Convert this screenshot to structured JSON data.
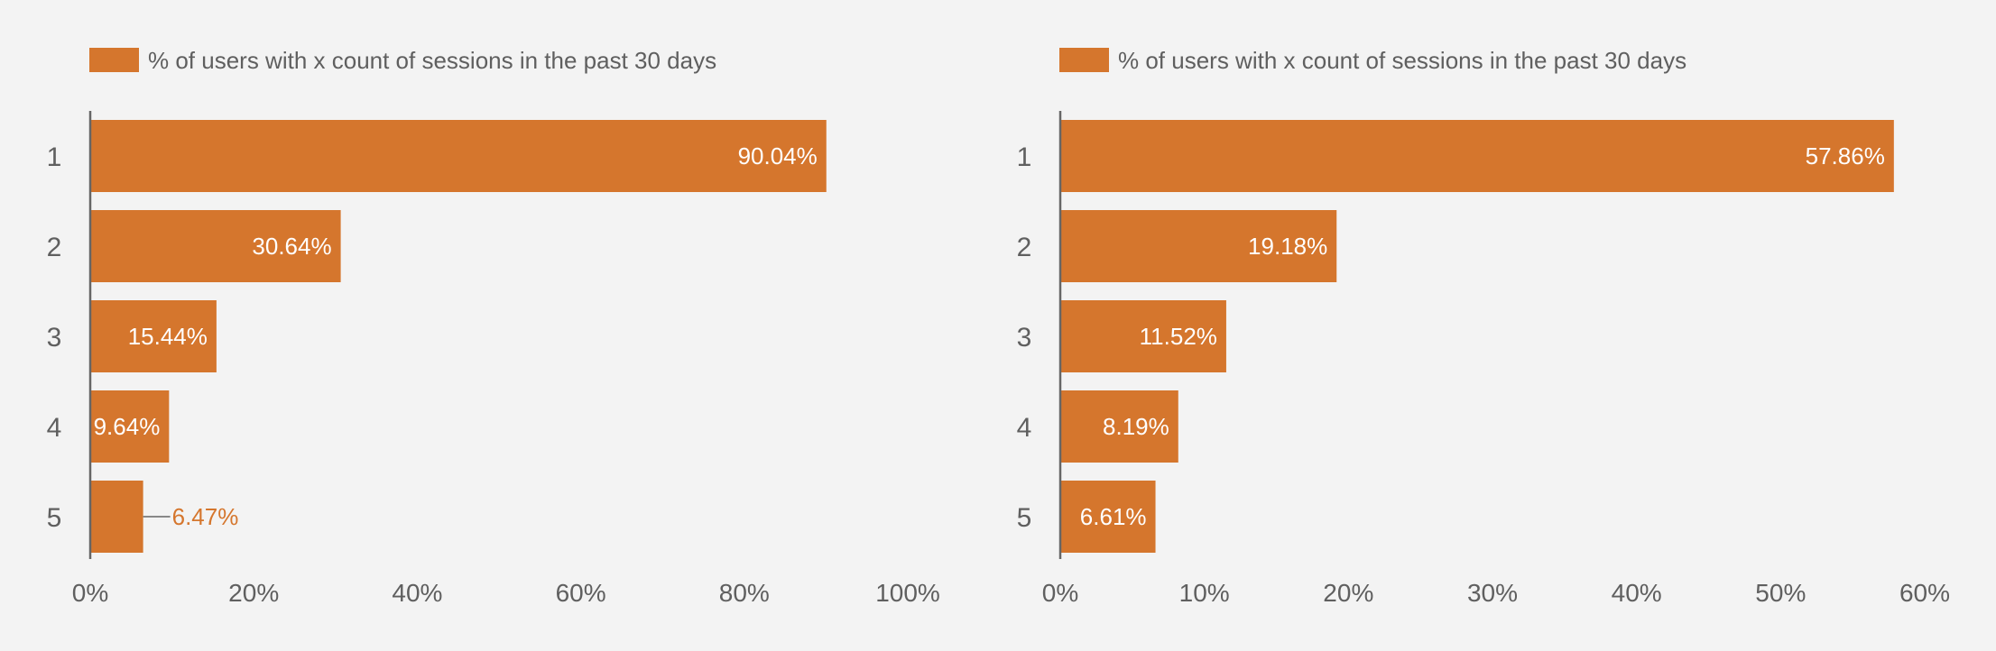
{
  "chart_data": [
    {
      "type": "bar",
      "orientation": "horizontal",
      "legend": {
        "label": "% of users with x count of sessions in the past 30 days",
        "placement": "top-left"
      },
      "categories": [
        "1",
        "2",
        "3",
        "4",
        "5"
      ],
      "values": [
        90.04,
        30.64,
        15.44,
        9.64,
        6.47
      ],
      "data_labels": [
        "90.04%",
        "30.64%",
        "15.44%",
        "9.64%",
        "6.47%"
      ],
      "xlim": [
        0,
        100
      ],
      "xticks": [
        0,
        20,
        40,
        60,
        80,
        100
      ],
      "xtick_labels": [
        "0%",
        "20%",
        "40%",
        "60%",
        "80%",
        "100%"
      ],
      "grid": false
    },
    {
      "type": "bar",
      "orientation": "horizontal",
      "legend": {
        "label": "% of users with x count of sessions in the past 30 days",
        "placement": "top-left"
      },
      "categories": [
        "1",
        "2",
        "3",
        "4",
        "5"
      ],
      "values": [
        57.86,
        19.18,
        11.52,
        8.19,
        6.61
      ],
      "data_labels": [
        "57.86%",
        "19.18%",
        "11.52%",
        "8.19%",
        "6.61%"
      ],
      "xlim": [
        0,
        60
      ],
      "xticks": [
        0,
        10,
        20,
        30,
        40,
        50,
        60
      ],
      "xtick_labels": [
        "0%",
        "10%",
        "20%",
        "30%",
        "40%",
        "50%",
        "60%"
      ],
      "grid": false
    }
  ],
  "colors": {
    "bar": "#d5762d",
    "background": "#f3f3f3",
    "axis": "#666666",
    "text": "#5f5f5f",
    "inside_label": "#ffffff"
  }
}
